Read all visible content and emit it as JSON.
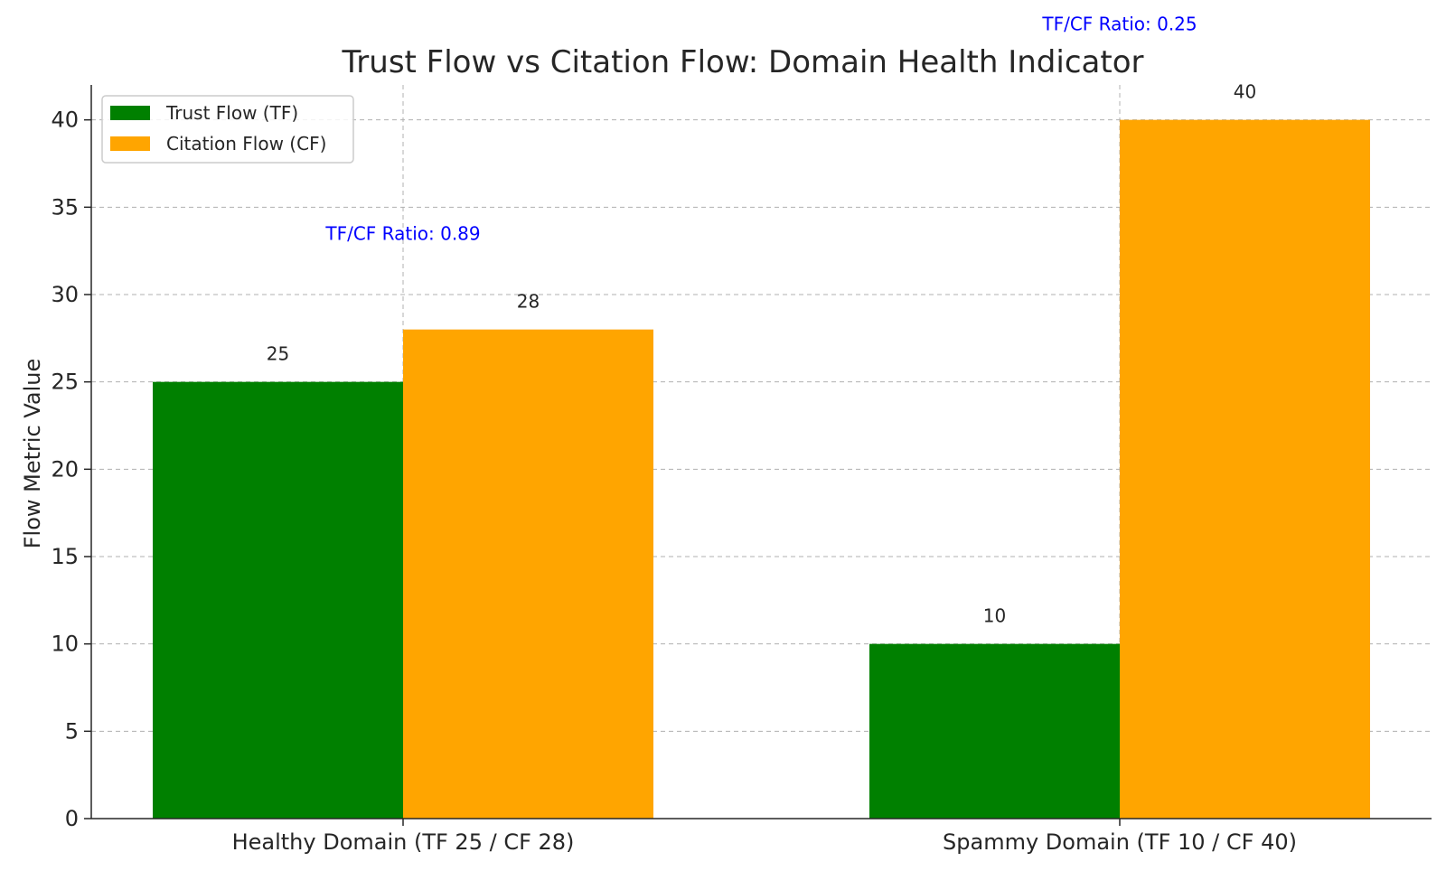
{
  "chart_data": {
    "type": "bar",
    "title": "Trust Flow vs Citation Flow: Domain Health Indicator",
    "xlabel": "",
    "ylabel": "Flow Metric Value",
    "categories": [
      "Healthy Domain (TF 25 / CF 28)",
      "Spammy Domain (TF 10 / CF 40)"
    ],
    "series": [
      {
        "name": "Trust Flow (TF)",
        "values": [
          25,
          10
        ],
        "color": "#008000"
      },
      {
        "name": "Citation Flow (CF)",
        "values": [
          28,
          40
        ],
        "color": "#FFA500"
      }
    ],
    "ylim": [
      0,
      42
    ],
    "yticks": [
      "0",
      "5",
      "10",
      "15",
      "20",
      "25",
      "30",
      "35",
      "40"
    ],
    "bar_labels": [
      "25",
      "10",
      "28",
      "40"
    ],
    "ratio_annotations": [
      {
        "text": "TF/CF Ratio: 0.89",
        "value": 33.5,
        "color": "#0000FF"
      },
      {
        "text": "TF/CF Ratio: 0.25",
        "value": 45.5,
        "color": "#0000FF"
      }
    ],
    "grid": true,
    "legend_position": "top-left"
  }
}
